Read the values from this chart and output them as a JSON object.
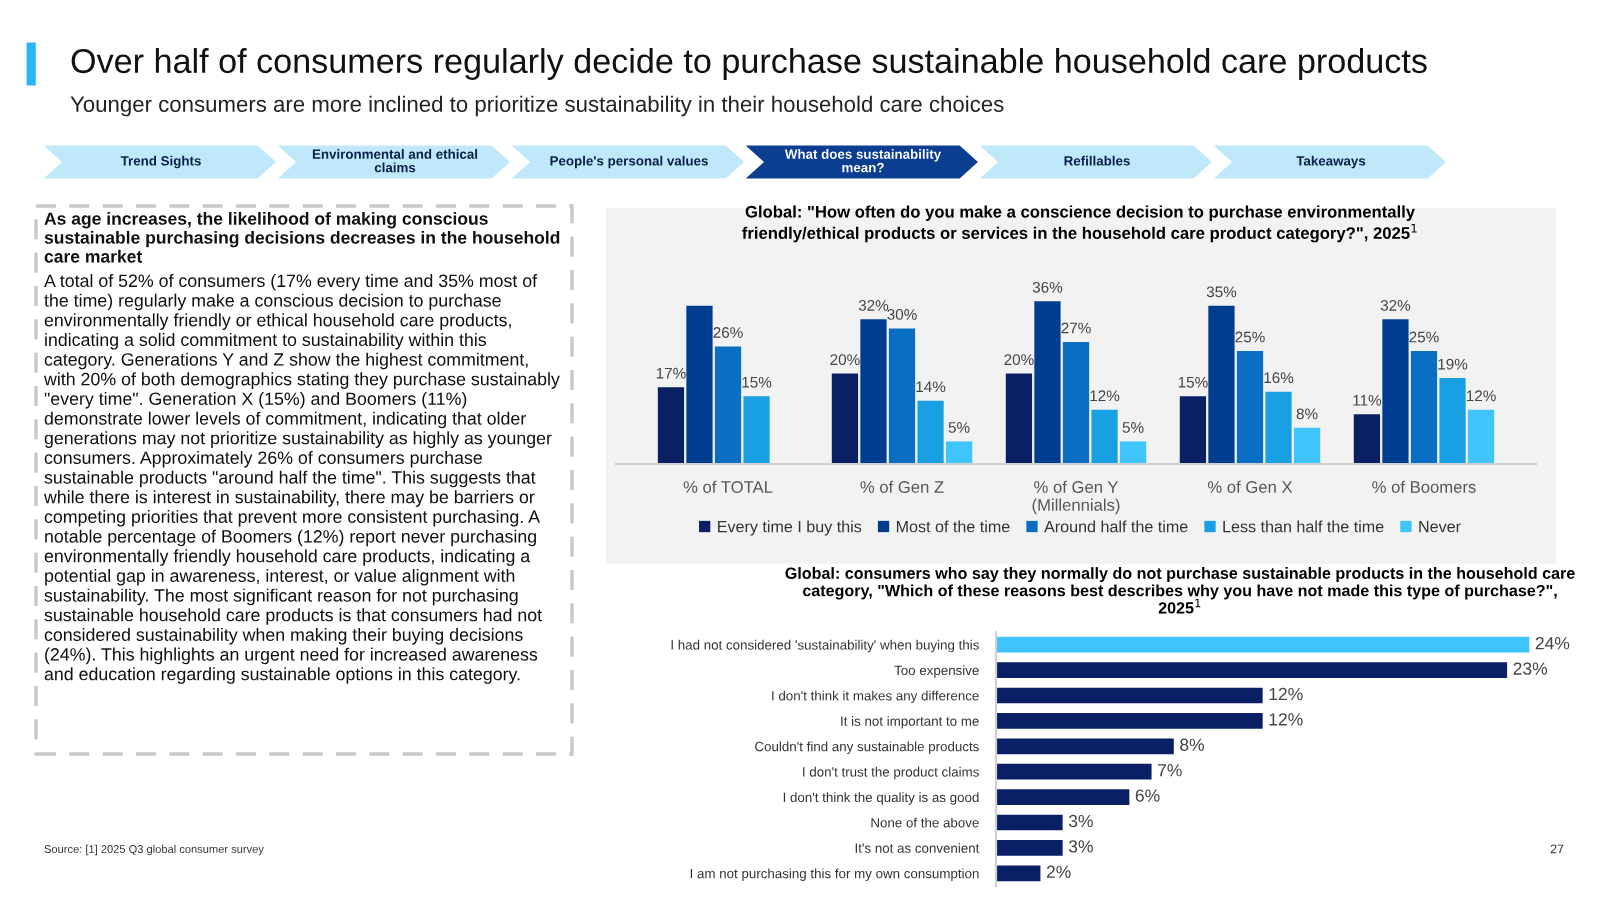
{
  "chart_data": [
    {
      "type": "other",
      "title": "Over half of consumers regularly decide to purchase sustainable household care products",
      "subtitle": "Younger consumers are more inclined to prioritize sustainability in their household care choices",
      "annotations": [
        "Trend Sights",
        "Environmental and ethical claims",
        "People's personal values",
        "What does sustainability mean?",
        "Refillables",
        "Takeaways",
        "As age increases, the likelihood of making conscious sustainable purchasing decisions decreases in the household care market",
        "A total of 52% of consumers (17% every time and 35% most of the time) regularly make a conscious decision to purchase environmentally friendly or ethical household care products, indicating a solid commitment to sustainability within this category. Generations Y and Z show the highest commitment, with 20% of both demographics stating they purchase sustainably \"every time\". Generation X (15%) and Boomers (11%) demonstrate lower levels of commitment, indicating that older generations may not prioritize sustainability as highly as younger consumers. Approximately 26% of consumers purchase sustainable products \"around half the time\". This suggests that while there is interest in sustainability, there may be barriers or competing priorities that prevent more consistent purchasing. A notable percentage of Boomers (12%) report never purchasing environmentally friendly household care products, indicating a potential gap in awareness, interest, or value alignment with sustainability. The most significant reason for not purchasing sustainable household care products is that consumers had not considered sustainability when making their buying decisions (24%). This highlights an urgent need for increased awareness and education regarding sustainable options in this category.",
        "Source: [1] 2025 Q3 global consumer survey",
        "27"
      ]
    },
    {
      "type": "bar",
      "title": "Global: \"How often do you make a conscience decision to purchase environmentally friendly/ethical products or services in the household care product category?\", 2025$^{1}$",
      "categories": [
        "% of TOTAL",
        "% of Gen Z",
        "% of Gen Y\n(Millennials)",
        "% of Gen X",
        "% of Boomers"
      ],
      "legend": "bottom",
      "grid": false,
      "series": [
        {
          "name": "Every time I buy this",
          "color": "#0b1f65",
          "values": [
            17,
            20,
            20,
            15,
            11
          ],
          "value_labels": [
            "17%",
            "20%",
            "20%",
            "15%",
            "11%"
          ]
        },
        {
          "name": "Most of the time",
          "color": "#003d8f",
          "values": [
            35,
            32,
            36,
            35,
            32
          ],
          "value_labels": [
            null,
            "32%",
            "36%",
            "35%",
            "32%"
          ]
        },
        {
          "name": "Around half the time",
          "color": "#0a6fc2",
          "values": [
            26,
            30,
            27,
            25,
            25
          ],
          "value_labels": [
            "26%",
            "30%",
            "27%",
            "25%",
            "25%"
          ]
        },
        {
          "name": "Less than half the time",
          "color": "#18a0e2",
          "values": [
            15,
            14,
            12,
            16,
            19
          ],
          "value_labels": [
            "15%",
            "14%",
            "12%",
            "16%",
            "19%"
          ]
        },
        {
          "name": "Never",
          "color": "#3fc4fb",
          "values": [
            null,
            5,
            5,
            8,
            12
          ],
          "value_labels": [
            null,
            "5%",
            "5%",
            "8%",
            "12%"
          ]
        }
      ]
    },
    {
      "type": "bar",
      "orientation": "horizontal",
      "title": "Global: consumers who say they normally do not purchase sustainable products in the household care category, \"Which of these reasons best describes why you have not made this type of purchase?\", 2025$^{1}$",
      "categories": [
        "I had not considered 'sustainability' when buying this",
        "Too expensive",
        "I don't think it makes any difference",
        "It is not important to me",
        "Couldn't find any sustainable products",
        "I don't trust the product claims",
        "I don't think the quality is as good",
        "None of the above",
        "It's not as convenient",
        "I am not purchasing this for my own consumption"
      ],
      "values": [
        24,
        23,
        12,
        12,
        8,
        7,
        6,
        3,
        3,
        2
      ],
      "value_labels": [
        "24%",
        "23%",
        "12%",
        "12%",
        "8%",
        "7%",
        "6%",
        "3%",
        "3%",
        "2%"
      ],
      "colors": [
        "#3fc4fb",
        "#0b1f65",
        "#0b1f65",
        "#0b1f65",
        "#0b1f65",
        "#0b1f65",
        "#0b1f65",
        "#0b1f65",
        "#0b1f65",
        "#0b1f65"
      ],
      "grid": false,
      "legend": false
    }
  ]
}
